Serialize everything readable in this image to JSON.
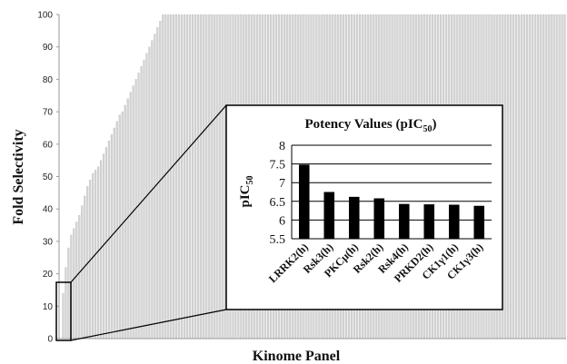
{
  "chart_data": [
    {
      "type": "bar",
      "title": "",
      "xlabel": "Kinome Panel",
      "ylabel": "Fold Selectivity",
      "ylim": [
        0,
        100
      ],
      "yticks": [
        0,
        10,
        20,
        30,
        40,
        50,
        60,
        70,
        80,
        90,
        100
      ],
      "grid": false,
      "series": [
        {
          "values": [
            0,
            14,
            22,
            28,
            32,
            34,
            36,
            38,
            41,
            44,
            47,
            49,
            51,
            52,
            53,
            55,
            57,
            59,
            61,
            63,
            65,
            67,
            69,
            70,
            72,
            74,
            76,
            78,
            80,
            82,
            84,
            86,
            88,
            90,
            92,
            94,
            96,
            98,
            100,
            100,
            100,
            100,
            100,
            100,
            100,
            100,
            100,
            100,
            100,
            100,
            100,
            100,
            100,
            100,
            100,
            100,
            100,
            100,
            100,
            100,
            100,
            100,
            100,
            100,
            100,
            100,
            100,
            100,
            100,
            100,
            100,
            100,
            100,
            100,
            100,
            100,
            100,
            100,
            100,
            100,
            100,
            100,
            100,
            100,
            100,
            100,
            100,
            100,
            100,
            100,
            100,
            100,
            100,
            100,
            100,
            100,
            100,
            100,
            100,
            100,
            100,
            100,
            100,
            100,
            100,
            100,
            100,
            100,
            100,
            100,
            100,
            100,
            100,
            100,
            100,
            100,
            100,
            100,
            100,
            100,
            100,
            100,
            100,
            100,
            100,
            100,
            100,
            100,
            100,
            100,
            100,
            100,
            100,
            100,
            100,
            100,
            100,
            100,
            100,
            100,
            100,
            100,
            100,
            100,
            100,
            100,
            100,
            100,
            100,
            100,
            100,
            100,
            100,
            100,
            100,
            100,
            100,
            100,
            100,
            100,
            100,
            100,
            100,
            100,
            100,
            100,
            100,
            100,
            100,
            100,
            100,
            100,
            100,
            100,
            100,
            100,
            100,
            100,
            100,
            100,
            100,
            100,
            100,
            100,
            100,
            100,
            100,
            100
          ]
        }
      ],
      "colors": {
        "bar": "#d4d4d4",
        "bar_edge": "#bdbdbd",
        "axis": "#999999"
      },
      "zoom_box_range": [
        0,
        17
      ]
    },
    {
      "type": "bar",
      "title": "Potency Values (pIC",
      "title_sub": "50",
      "title_close": ")",
      "xlabel": "",
      "ylabel": "pIC",
      "ylabel_sub": "50",
      "ylim": [
        5.5,
        8
      ],
      "yticks": [
        "5.5",
        "6",
        "6.5",
        "7",
        "7.5",
        "8"
      ],
      "grid": true,
      "categories": [
        "LRRK2(h)",
        "Rsk3(h)",
        "PKCμ(h)",
        "Rsk2(h)",
        "Rsk4(h)",
        "PRKD2(h)",
        "CK1γ1(h)",
        "CK1γ3(h)"
      ],
      "values": [
        7.48,
        6.75,
        6.62,
        6.58,
        6.43,
        6.42,
        6.41,
        6.38
      ],
      "colors": {
        "bar": "#000000",
        "grid": "#000000"
      }
    }
  ]
}
